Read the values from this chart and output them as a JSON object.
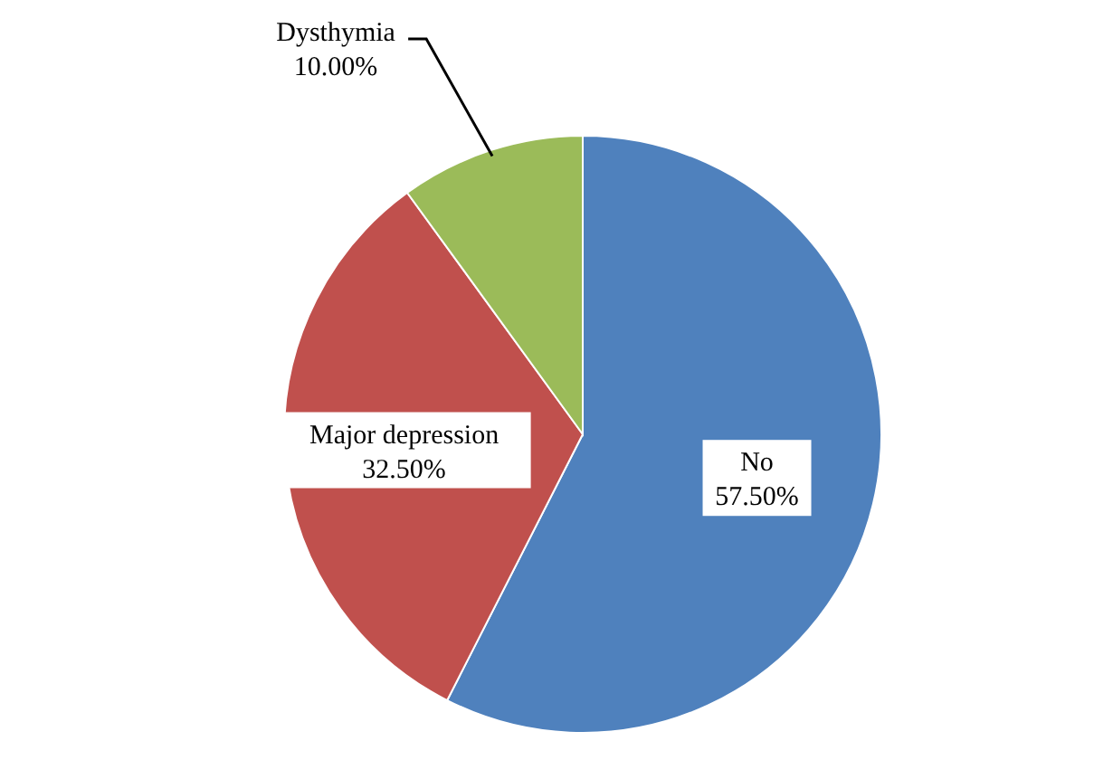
{
  "chart_data": {
    "type": "pie",
    "categories": [
      "No",
      "Major depression",
      "Dysthymia"
    ],
    "values": [
      57.5,
      32.5,
      10
    ],
    "colors": [
      "#4f81bd",
      "#c0504d",
      "#9bbb59"
    ],
    "value_labels": [
      "57.50%",
      "32.50%",
      "10.00%"
    ]
  }
}
